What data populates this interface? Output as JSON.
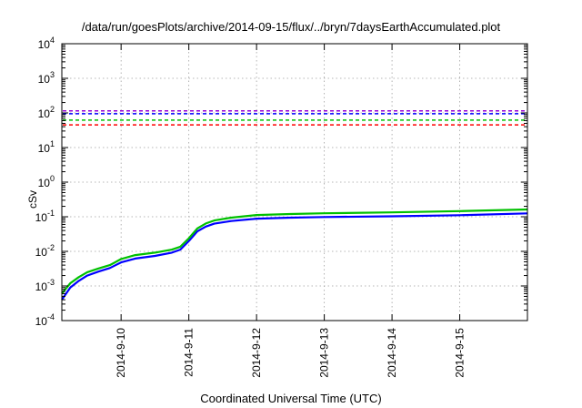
{
  "chart_data": {
    "type": "line",
    "title": "/data/run/goesPlots/archive/2014-09-15/flux/../bryn/7daysEarthAccumulated.plot",
    "xlabel": "Coordinated Universal Time (UTC)",
    "ylabel": "cSv",
    "yscale": "log",
    "ylim": [
      0.0001,
      10000
    ],
    "xlim": [
      "2014-09-09 03:00",
      "2014-09-15 23:59"
    ],
    "x_ticks": [
      "2014-9-10",
      "2014-9-11",
      "2014-9-12",
      "2014-9-13",
      "2014-9-14",
      "2014-9-15"
    ],
    "y_ticks": [
      {
        "value": 0.0001,
        "base": "10",
        "exp": "-4"
      },
      {
        "value": 0.001,
        "base": "10",
        "exp": "-3"
      },
      {
        "value": 0.01,
        "base": "10",
        "exp": "-2"
      },
      {
        "value": 0.1,
        "base": "10",
        "exp": "-1"
      },
      {
        "value": 1,
        "base": "10",
        "exp": "0"
      },
      {
        "value": 10,
        "base": "10",
        "exp": "1"
      },
      {
        "value": 100,
        "base": "10",
        "exp": "2"
      },
      {
        "value": 1000,
        "base": "10",
        "exp": "3"
      },
      {
        "value": 10000,
        "base": "10",
        "exp": "4"
      }
    ],
    "grid": true,
    "threshold_lines": [
      {
        "value": 115,
        "color": "#9400d3",
        "style": "dashed"
      },
      {
        "value": 95,
        "color": "#0000ff",
        "style": "dashed"
      },
      {
        "value": 62,
        "color": "#00c000",
        "style": "dashed"
      },
      {
        "value": 45,
        "color": "#ff0000",
        "style": "dashed"
      }
    ],
    "series": [
      {
        "color": "#0000ff",
        "points": [
          [
            "2014-09-09 03:00",
            0.0004
          ],
          [
            "2014-09-09 06:00",
            0.0009
          ],
          [
            "2014-09-09 09:00",
            0.0014
          ],
          [
            "2014-09-09 12:00",
            0.002
          ],
          [
            "2014-09-09 16:00",
            0.0026
          ],
          [
            "2014-09-09 20:00",
            0.0033
          ],
          [
            "2014-09-10 00:00",
            0.0048
          ],
          [
            "2014-09-10 05:00",
            0.0062
          ],
          [
            "2014-09-10 12:00",
            0.0074
          ],
          [
            "2014-09-10 18:00",
            0.0092
          ],
          [
            "2014-09-10 21:00",
            0.0112
          ],
          [
            "2014-09-11 00:00",
            0.02
          ],
          [
            "2014-09-11 03:00",
            0.038
          ],
          [
            "2014-09-11 06:00",
            0.052
          ],
          [
            "2014-09-11 09:00",
            0.063
          ],
          [
            "2014-09-11 15:00",
            0.075
          ],
          [
            "2014-09-12 00:00",
            0.088
          ],
          [
            "2014-09-12 12:00",
            0.094
          ],
          [
            "2014-09-13 00:00",
            0.098
          ],
          [
            "2014-09-14 00:00",
            0.103
          ],
          [
            "2014-09-15 00:00",
            0.111
          ],
          [
            "2014-09-15 23:59",
            0.125
          ]
        ]
      },
      {
        "color": "#00c000",
        "points": [
          [
            "2014-09-09 03:00",
            0.0006
          ],
          [
            "2014-09-09 06:00",
            0.0012
          ],
          [
            "2014-09-09 09:00",
            0.0018
          ],
          [
            "2014-09-09 12:00",
            0.0025
          ],
          [
            "2014-09-09 16:00",
            0.0032
          ],
          [
            "2014-09-09 20:00",
            0.004
          ],
          [
            "2014-09-10 00:00",
            0.006
          ],
          [
            "2014-09-10 05:00",
            0.0078
          ],
          [
            "2014-09-10 12:00",
            0.0092
          ],
          [
            "2014-09-10 18:00",
            0.0112
          ],
          [
            "2014-09-10 21:00",
            0.0136
          ],
          [
            "2014-09-11 00:00",
            0.024
          ],
          [
            "2014-09-11 03:00",
            0.046
          ],
          [
            "2014-09-11 06:00",
            0.064
          ],
          [
            "2014-09-11 09:00",
            0.078
          ],
          [
            "2014-09-11 15:00",
            0.094
          ],
          [
            "2014-09-12 00:00",
            0.112
          ],
          [
            "2014-09-12 12:00",
            0.12
          ],
          [
            "2014-09-13 00:00",
            0.126
          ],
          [
            "2014-09-14 00:00",
            0.134
          ],
          [
            "2014-09-15 00:00",
            0.146
          ],
          [
            "2014-09-15 23:59",
            0.162
          ]
        ]
      }
    ]
  }
}
